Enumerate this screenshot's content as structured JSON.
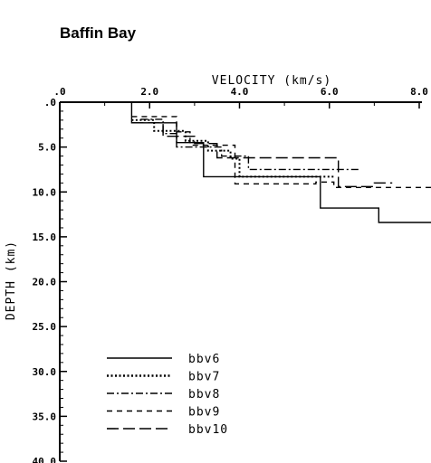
{
  "chart_data": {
    "type": "line",
    "title": "Baffin Bay",
    "xlabel": "VELOCITY (km/s)",
    "ylabel": "DEPTH (km)",
    "xlim": [
      0,
      8.0
    ],
    "ylim": [
      0,
      40.0
    ],
    "y_inverted": true,
    "x_axis_position": "top",
    "x_ticks": [
      ".0",
      "2.0",
      "4.0",
      "6.0",
      "8.0"
    ],
    "y_ticks": [
      ".0",
      "5.0",
      "10.0",
      "15.0",
      "20.0",
      "25.0",
      "30.0",
      "35.0",
      "40.0"
    ],
    "grid": false,
    "legend_position": "bottom-left",
    "series": [
      {
        "name": "bbv6",
        "style": "solid",
        "points": [
          [
            1.6,
            0.0
          ],
          [
            1.6,
            2.3
          ],
          [
            2.6,
            2.3
          ],
          [
            2.6,
            4.5
          ],
          [
            3.2,
            4.5
          ],
          [
            3.2,
            8.3
          ],
          [
            5.8,
            8.3
          ],
          [
            5.8,
            11.8
          ],
          [
            7.1,
            11.8
          ],
          [
            7.1,
            13.4
          ],
          [
            8.7,
            13.4
          ]
        ]
      },
      {
        "name": "bbv7",
        "style": "dotted",
        "points": [
          [
            1.6,
            2.0
          ],
          [
            2.1,
            2.0
          ],
          [
            2.1,
            3.2
          ],
          [
            2.8,
            3.2
          ],
          [
            2.8,
            4.3
          ],
          [
            3.3,
            4.3
          ],
          [
            3.3,
            5.4
          ],
          [
            3.8,
            5.4
          ],
          [
            3.8,
            6.3
          ],
          [
            4.0,
            6.3
          ],
          [
            4.0,
            8.3
          ],
          [
            6.1,
            8.3
          ]
        ]
      },
      {
        "name": "bbv8",
        "style": "dashdot",
        "points": [
          [
            1.8,
            1.9
          ],
          [
            2.3,
            1.9
          ],
          [
            2.3,
            3.5
          ],
          [
            2.6,
            3.5
          ],
          [
            2.6,
            5.0
          ],
          [
            3.6,
            5.0
          ],
          [
            3.6,
            6.0
          ],
          [
            4.2,
            6.0
          ],
          [
            4.2,
            7.5
          ],
          [
            6.7,
            7.5
          ]
        ]
      },
      {
        "name": "bbv9",
        "style": "dash",
        "points": [
          [
            1.6,
            1.6
          ],
          [
            2.6,
            1.6
          ],
          [
            2.6,
            3.3
          ],
          [
            2.9,
            3.3
          ],
          [
            2.9,
            4.8
          ],
          [
            3.9,
            4.8
          ],
          [
            3.9,
            9.1
          ],
          [
            5.7,
            9.1
          ],
          [
            5.7,
            8.9
          ],
          [
            6.1,
            8.9
          ],
          [
            6.1,
            9.5
          ],
          [
            8.6,
            9.5
          ]
        ]
      },
      {
        "name": "bbv10",
        "style": "longdash",
        "points": [
          [
            1.6,
            2.3
          ],
          [
            2.3,
            2.3
          ],
          [
            2.3,
            3.8
          ],
          [
            3.0,
            3.8
          ],
          [
            3.0,
            4.6
          ],
          [
            3.5,
            4.6
          ],
          [
            3.5,
            6.2
          ],
          [
            6.2,
            6.2
          ],
          [
            6.2,
            9.4
          ],
          [
            7.0,
            9.4
          ],
          [
            7.0,
            9.0
          ],
          [
            7.4,
            9.0
          ]
        ]
      }
    ]
  }
}
